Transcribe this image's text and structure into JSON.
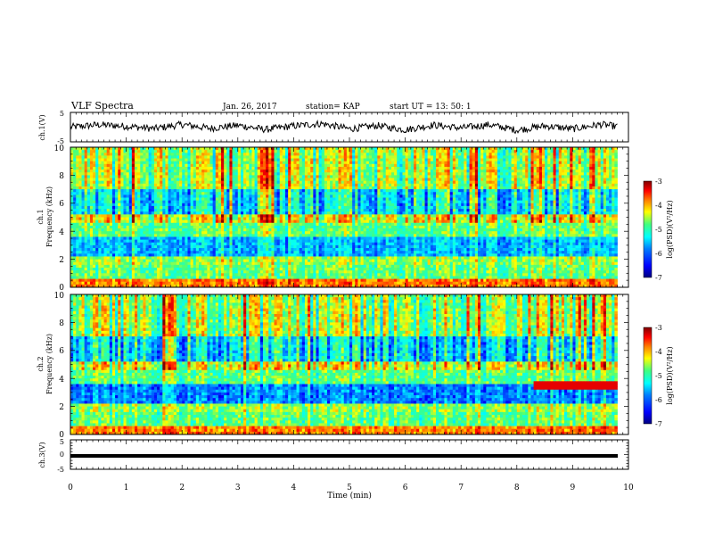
{
  "header": {
    "title": "VLF Spectra",
    "date": "Jan. 26, 2017",
    "station": "station= KAP",
    "start": "start  UT =  13: 50: 1"
  },
  "colors": {
    "colormap": [
      "#000080",
      "#0000ff",
      "#0080ff",
      "#00ffff",
      "#40ff80",
      "#ffff00",
      "#ff8000",
      "#ff0000",
      "#800000"
    ],
    "trace": "#000000",
    "axes": "#000000"
  },
  "chart_data": [
    {
      "type": "line",
      "panel": "ch1-waveform",
      "ylabel": "ch.1(V)",
      "ylim": [
        -5,
        5
      ],
      "yticks": [
        "5",
        "-5"
      ],
      "xlim": [
        0,
        10
      ],
      "note_values": "trace oscillates roughly between -2 and 2 V",
      "x": [
        0,
        0.5,
        1,
        1.5,
        2,
        2.5,
        3,
        3.5,
        4,
        4.5,
        5,
        5.5,
        6,
        6.5,
        7,
        7.5,
        8,
        8.5,
        9,
        9.5,
        9.8
      ],
      "y": [
        0.0,
        0.8,
        0.3,
        -0.5,
        0.9,
        -0.4,
        0.6,
        -0.8,
        0.4,
        1.2,
        -0.6,
        0.5,
        -0.9,
        0.7,
        -0.3,
        0.8,
        -1.0,
        0.4,
        -0.6,
        0.9,
        0.2
      ]
    },
    {
      "type": "heatmap",
      "panel": "ch1-spectrogram",
      "ylabel": "ch.1 Frequency (kHz)",
      "ylabel_line1": "ch.1",
      "ylabel_line2": "Frequency (kHz)",
      "ylim": [
        0,
        10
      ],
      "yticks": [
        "0",
        "2",
        "4",
        "6",
        "8",
        "10"
      ],
      "xlim": [
        0,
        9.8
      ],
      "colorbar": {
        "label": "log(PSD)(V²/Hz)",
        "range": [
          -7,
          -3
        ],
        "ticks": [
          "-3",
          "-4",
          "-5",
          "-6",
          "-7"
        ]
      }
    },
    {
      "type": "heatmap",
      "panel": "ch2-spectrogram",
      "ylabel": "ch.2 Frequency (kHz)",
      "ylabel_line1": "ch.2",
      "ylabel_line2": "Frequency (kHz)",
      "ylim": [
        0,
        10
      ],
      "yticks": [
        "0",
        "2",
        "4",
        "6",
        "8",
        "10"
      ],
      "xlim": [
        0,
        9.8
      ],
      "colorbar": {
        "label": "log(PSD)(V²/Hz)",
        "range": [
          -7,
          -3
        ],
        "ticks": [
          "-3",
          "-4",
          "-5",
          "-6",
          "-7"
        ]
      }
    },
    {
      "type": "line",
      "panel": "ch3-waveform",
      "ylabel": "ch.3(V)",
      "ylim": [
        -5,
        5
      ],
      "yticks": [
        "5",
        "0",
        "-5"
      ],
      "xlim": [
        0,
        10
      ],
      "x": [
        0,
        9.8
      ],
      "y": [
        -1.3,
        -1.3
      ]
    }
  ],
  "xaxis": {
    "label": "Time  (min)",
    "ticks": [
      "0",
      "1",
      "2",
      "3",
      "4",
      "5",
      "6",
      "7",
      "8",
      "9",
      "10"
    ]
  }
}
